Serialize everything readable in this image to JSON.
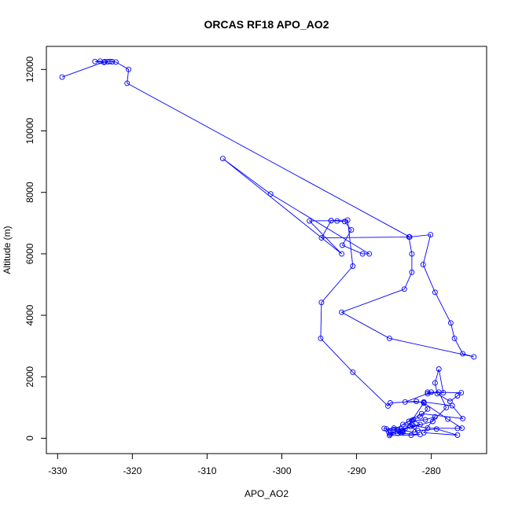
{
  "chart_data": {
    "type": "line",
    "title": "ORCAS RF18 APO_AO2",
    "xlabel": "APO_AO2",
    "ylabel": "Altitude (m)",
    "xlim": [
      -331.5,
      -272.6
    ],
    "ylim": [
      -500,
      12750
    ],
    "xticks": [
      -330,
      -320,
      -310,
      -300,
      -290,
      -280
    ],
    "yticks": [
      0,
      2000,
      4000,
      6000,
      8000,
      10000,
      12000
    ],
    "grid": false,
    "series_color": "#0000ff",
    "series": [
      {
        "points": [
          [
            -329.4,
            11750
          ],
          [
            -323.7,
            12250
          ],
          [
            -324.3,
            12270
          ],
          [
            -325.0,
            12260
          ],
          [
            -323.8,
            12230
          ],
          [
            -323.3,
            12250
          ],
          [
            -323.0,
            12260
          ],
          [
            -322.7,
            12250
          ],
          [
            -322.2,
            12240
          ],
          [
            -320.5,
            12000
          ],
          [
            -320.7,
            11550
          ],
          [
            -282.9,
            6550
          ],
          [
            -280.1,
            6620
          ],
          [
            -281.1,
            5650
          ],
          [
            -279.5,
            4750
          ],
          [
            -277.4,
            3750
          ],
          [
            -276.9,
            3250
          ],
          [
            -275.8,
            2750
          ],
          [
            -274.3,
            2650
          ],
          [
            -285.6,
            3250
          ],
          [
            -292.0,
            4100
          ],
          [
            -283.6,
            4850
          ],
          [
            -282.6,
            5400
          ],
          [
            -282.6,
            6000
          ],
          [
            -283.0,
            6550
          ],
          [
            -294.7,
            6520
          ],
          [
            -293.4,
            7080
          ],
          [
            -292.6,
            7070
          ],
          [
            -291.6,
            7050
          ],
          [
            -290.7,
            6780
          ],
          [
            -291.9,
            6280
          ],
          [
            -289.2,
            6000
          ],
          [
            -288.3,
            6000
          ],
          [
            -301.5,
            7950
          ],
          [
            -307.9,
            9100
          ],
          [
            -292.0,
            6000
          ],
          [
            -296.3,
            7070
          ],
          [
            -293.4,
            7080
          ],
          [
            -291.2,
            7100
          ],
          [
            -290.5,
            5600
          ],
          [
            -294.7,
            4420
          ],
          [
            -294.8,
            3250
          ],
          [
            -290.5,
            2150
          ],
          [
            -285.8,
            1050
          ],
          [
            -285.5,
            1150
          ],
          [
            -282.0,
            1200
          ],
          [
            -281.0,
            1150
          ],
          [
            -280.5,
            950
          ],
          [
            -281.5,
            700
          ],
          [
            -282.4,
            600
          ],
          [
            -281.5,
            450
          ],
          [
            -284.0,
            300
          ],
          [
            -285.0,
            330
          ],
          [
            -286.0,
            300
          ],
          [
            -285.7,
            200
          ],
          [
            -285.5,
            130
          ],
          [
            -284.5,
            280
          ],
          [
            -283.5,
            320
          ],
          [
            -282.3,
            380
          ],
          [
            -279.8,
            550
          ],
          [
            -278.0,
            1000
          ],
          [
            -279.0,
            1500
          ],
          [
            -280.5,
            1450
          ],
          [
            -280.5,
            1500
          ],
          [
            -276.0,
            1480
          ],
          [
            -276.5,
            1380
          ],
          [
            -277.5,
            1200
          ],
          [
            -279.2,
            1450
          ],
          [
            -279.5,
            1800
          ],
          [
            -279.0,
            2250
          ],
          [
            -278.4,
            1480
          ],
          [
            -280.0,
            1500
          ],
          [
            -283.5,
            1180
          ],
          [
            -281.0,
            1180
          ],
          [
            -277.2,
            1060
          ],
          [
            -275.8,
            640
          ],
          [
            -281.3,
            800
          ],
          [
            -283.8,
            450
          ],
          [
            -282.5,
            420
          ],
          [
            -280.5,
            330
          ],
          [
            -276.5,
            320
          ],
          [
            -275.9,
            330
          ],
          [
            -277.8,
            620
          ],
          [
            -281.0,
            1150
          ],
          [
            -282.6,
            580
          ],
          [
            -283.8,
            200
          ],
          [
            -284.5,
            160
          ],
          [
            -285.5,
            180
          ],
          [
            -281.5,
            120
          ],
          [
            -282.7,
            100
          ],
          [
            -285.6,
            90
          ],
          [
            -284.2,
            200
          ],
          [
            -283.8,
            250
          ],
          [
            -282.2,
            200
          ],
          [
            -281.8,
            250
          ],
          [
            -279.3,
            300
          ],
          [
            -276.5,
            100
          ],
          [
            -281.0,
            180
          ],
          [
            -279.5,
            700
          ],
          [
            -280.8,
            600
          ],
          [
            -283.0,
            550
          ],
          [
            -285.0,
            280
          ],
          [
            -286.3,
            320
          ],
          [
            -283.9,
            250
          ],
          [
            -282.8,
            380
          ]
        ]
      }
    ]
  }
}
